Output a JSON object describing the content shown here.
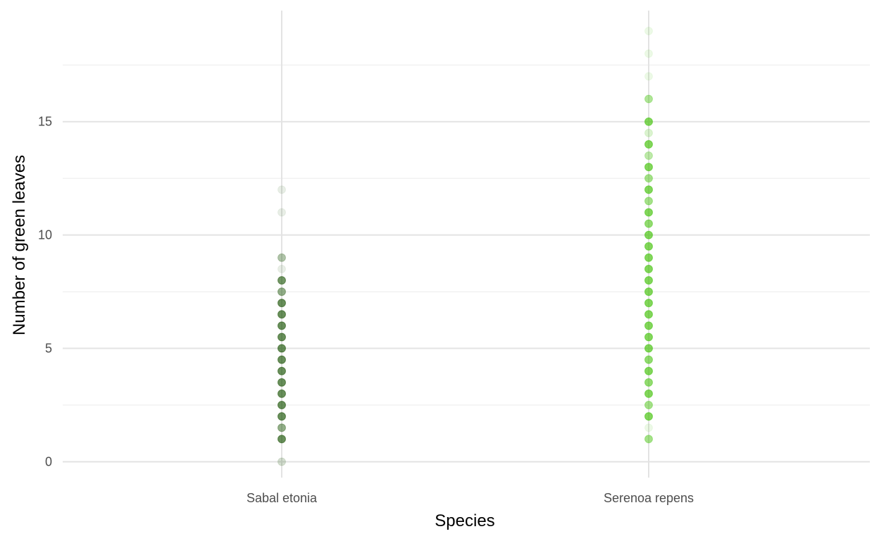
{
  "chart_data": {
    "type": "scatter",
    "xlabel": "Species",
    "ylabel": "Number of green leaves",
    "categories": [
      "Sabal etonia",
      "Serenoa repens"
    ],
    "ylim": [
      -0.7,
      19.9
    ],
    "yticks": [
      0,
      5,
      10,
      15
    ],
    "yticks_minor": [
      2.5,
      7.5,
      12.5,
      17.5
    ],
    "grid": true,
    "legend": "none",
    "point_opacity": 0.1,
    "series": [
      {
        "category": "Sabal etonia",
        "color": "#1d5506",
        "points": [
          {
            "y": 0,
            "n": 2
          },
          {
            "y": 1,
            "n": 10
          },
          {
            "y": 1.5,
            "n": 6
          },
          {
            "y": 2,
            "n": 10
          },
          {
            "y": 2.5,
            "n": 10
          },
          {
            "y": 3,
            "n": 10
          },
          {
            "y": 3.5,
            "n": 10
          },
          {
            "y": 4,
            "n": 10
          },
          {
            "y": 4.5,
            "n": 10
          },
          {
            "y": 5,
            "n": 10
          },
          {
            "y": 5.5,
            "n": 10
          },
          {
            "y": 6,
            "n": 10
          },
          {
            "y": 6.5,
            "n": 10
          },
          {
            "y": 7,
            "n": 10
          },
          {
            "y": 7.5,
            "n": 6
          },
          {
            "y": 8,
            "n": 9
          },
          {
            "y": 8.5,
            "n": 1
          },
          {
            "y": 9,
            "n": 4
          },
          {
            "y": 11,
            "n": 1
          },
          {
            "y": 12,
            "n": 1
          }
        ]
      },
      {
        "category": "Serenoa repens",
        "color": "#44c40c",
        "points": [
          {
            "y": 1,
            "n": 6
          },
          {
            "y": 1.5,
            "n": 1
          },
          {
            "y": 2,
            "n": 10
          },
          {
            "y": 2.5,
            "n": 6
          },
          {
            "y": 3,
            "n": 10
          },
          {
            "y": 3.5,
            "n": 8
          },
          {
            "y": 4,
            "n": 10
          },
          {
            "y": 4.5,
            "n": 8
          },
          {
            "y": 5,
            "n": 10
          },
          {
            "y": 5.5,
            "n": 10
          },
          {
            "y": 6,
            "n": 10
          },
          {
            "y": 6.5,
            "n": 10
          },
          {
            "y": 7,
            "n": 10
          },
          {
            "y": 7.5,
            "n": 10
          },
          {
            "y": 8,
            "n": 10
          },
          {
            "y": 8.5,
            "n": 10
          },
          {
            "y": 9,
            "n": 10
          },
          {
            "y": 9.5,
            "n": 10
          },
          {
            "y": 10,
            "n": 10
          },
          {
            "y": 10.5,
            "n": 8
          },
          {
            "y": 11,
            "n": 10
          },
          {
            "y": 11.5,
            "n": 6
          },
          {
            "y": 12,
            "n": 10
          },
          {
            "y": 12.5,
            "n": 6
          },
          {
            "y": 13,
            "n": 10
          },
          {
            "y": 13.5,
            "n": 4
          },
          {
            "y": 14,
            "n": 10
          },
          {
            "y": 14.5,
            "n": 2
          },
          {
            "y": 15,
            "n": 10
          },
          {
            "y": 16,
            "n": 5
          },
          {
            "y": 17,
            "n": 1
          },
          {
            "y": 18,
            "n": 1
          },
          {
            "y": 19,
            "n": 1
          }
        ]
      }
    ]
  }
}
